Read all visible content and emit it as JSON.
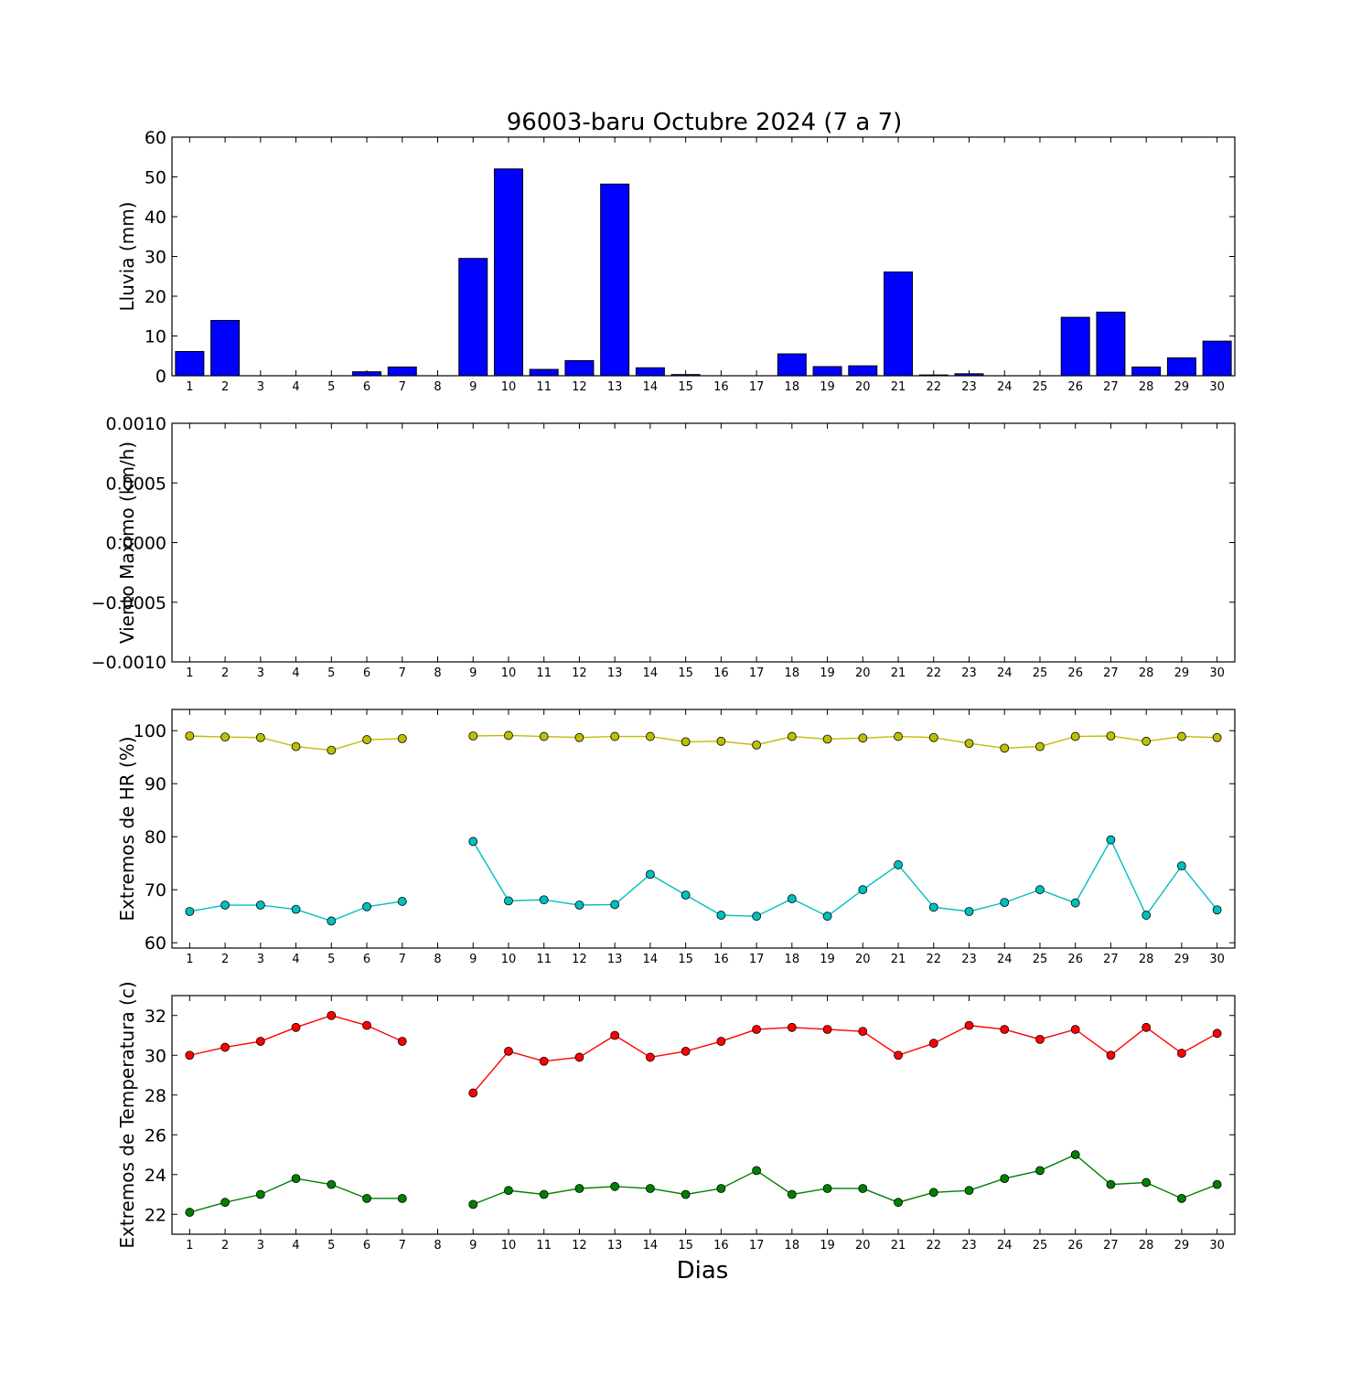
{
  "title": "96003-baru Octubre 2024  (7 a 7)",
  "xlabel": "Dias",
  "colors": {
    "rain": "#0000ff",
    "hr_max": "#bfbf00",
    "hr_min": "#00bfbf",
    "temp_max": "#ff0000",
    "temp_min": "#008000"
  },
  "chart_data": [
    {
      "type": "bar",
      "ylabel": "Lluvia (mm)",
      "ylim": [
        0,
        60
      ],
      "yticks": [
        "0",
        "10",
        "20",
        "30",
        "40",
        "50",
        "60"
      ],
      "categories": [
        "1",
        "2",
        "3",
        "4",
        "5",
        "6",
        "7",
        "8",
        "9",
        "10",
        "11",
        "12",
        "13",
        "14",
        "15",
        "16",
        "17",
        "18",
        "19",
        "20",
        "21",
        "22",
        "23",
        "24",
        "25",
        "26",
        "27",
        "28",
        "29",
        "30"
      ],
      "values": [
        6.1,
        13.9,
        0,
        0,
        0,
        1.0,
        2.2,
        null,
        29.5,
        52.0,
        1.6,
        3.8,
        48.2,
        2.0,
        0.3,
        0,
        0,
        5.5,
        2.3,
        2.5,
        26.1,
        0.2,
        0.5,
        0,
        0,
        14.7,
        16.0,
        2.2,
        4.5,
        8.7
      ]
    },
    {
      "type": "line",
      "ylabel": "Viento Maximo (km/h)",
      "ylim": [
        -0.001,
        0.001
      ],
      "yticks": [
        "−0.0010",
        "−0.0005",
        "0.0000",
        "0.0005",
        "0.0010"
      ],
      "categories": [
        "1",
        "2",
        "3",
        "4",
        "5",
        "6",
        "7",
        "8",
        "9",
        "10",
        "11",
        "12",
        "13",
        "14",
        "15",
        "16",
        "17",
        "18",
        "19",
        "20",
        "21",
        "22",
        "23",
        "24",
        "25",
        "26",
        "27",
        "28",
        "29",
        "30"
      ],
      "series": []
    },
    {
      "type": "line",
      "ylabel": "Extremos de HR (%)",
      "ylim": [
        59,
        104
      ],
      "yticks": [
        "60",
        "70",
        "80",
        "90",
        "100"
      ],
      "categories": [
        "1",
        "2",
        "3",
        "4",
        "5",
        "6",
        "7",
        "8",
        "9",
        "10",
        "11",
        "12",
        "13",
        "14",
        "15",
        "16",
        "17",
        "18",
        "19",
        "20",
        "21",
        "22",
        "23",
        "24",
        "25",
        "26",
        "27",
        "28",
        "29",
        "30"
      ],
      "series": [
        {
          "values": [
            99.0,
            98.8,
            98.7,
            97.0,
            96.3,
            98.3,
            98.5,
            null,
            99.0,
            99.1,
            98.9,
            98.7,
            98.9,
            98.9,
            97.9,
            98.0,
            97.3,
            98.9,
            98.4,
            98.6,
            98.9,
            98.7,
            97.6,
            96.7,
            97.0,
            98.9,
            99.0,
            98.0,
            98.9,
            98.7
          ]
        },
        {
          "values": [
            65.9,
            67.1,
            67.1,
            66.3,
            64.1,
            66.8,
            67.8,
            null,
            79.1,
            67.9,
            68.1,
            67.1,
            67.2,
            72.9,
            69.0,
            65.2,
            65.0,
            68.3,
            65.0,
            70.0,
            74.7,
            66.7,
            65.9,
            67.6,
            70.0,
            67.5,
            79.4,
            65.2,
            74.5,
            66.2
          ]
        }
      ]
    },
    {
      "type": "line",
      "ylabel": "Extremos de Temperatura (c)",
      "ylim": [
        21,
        33
      ],
      "yticks": [
        "22",
        "24",
        "26",
        "28",
        "30",
        "32"
      ],
      "categories": [
        "1",
        "2",
        "3",
        "4",
        "5",
        "6",
        "7",
        "8",
        "9",
        "10",
        "11",
        "12",
        "13",
        "14",
        "15",
        "16",
        "17",
        "18",
        "19",
        "20",
        "21",
        "22",
        "23",
        "24",
        "25",
        "26",
        "27",
        "28",
        "29",
        "30"
      ],
      "series": [
        {
          "values": [
            30.0,
            30.4,
            30.7,
            31.4,
            32.0,
            31.5,
            30.7,
            null,
            28.1,
            30.2,
            29.7,
            29.9,
            31.0,
            29.9,
            30.2,
            30.7,
            31.3,
            31.4,
            31.3,
            31.2,
            30.0,
            30.6,
            31.5,
            31.3,
            30.8,
            31.3,
            30.0,
            31.4,
            30.1,
            31.1
          ]
        },
        {
          "values": [
            22.1,
            22.6,
            23.0,
            23.8,
            23.5,
            22.8,
            22.8,
            null,
            22.5,
            23.2,
            23.0,
            23.3,
            23.4,
            23.3,
            23.0,
            23.3,
            24.2,
            23.0,
            23.3,
            23.3,
            22.6,
            23.1,
            23.2,
            23.8,
            24.2,
            25.0,
            23.5,
            23.6,
            22.8,
            23.5
          ]
        }
      ]
    }
  ]
}
